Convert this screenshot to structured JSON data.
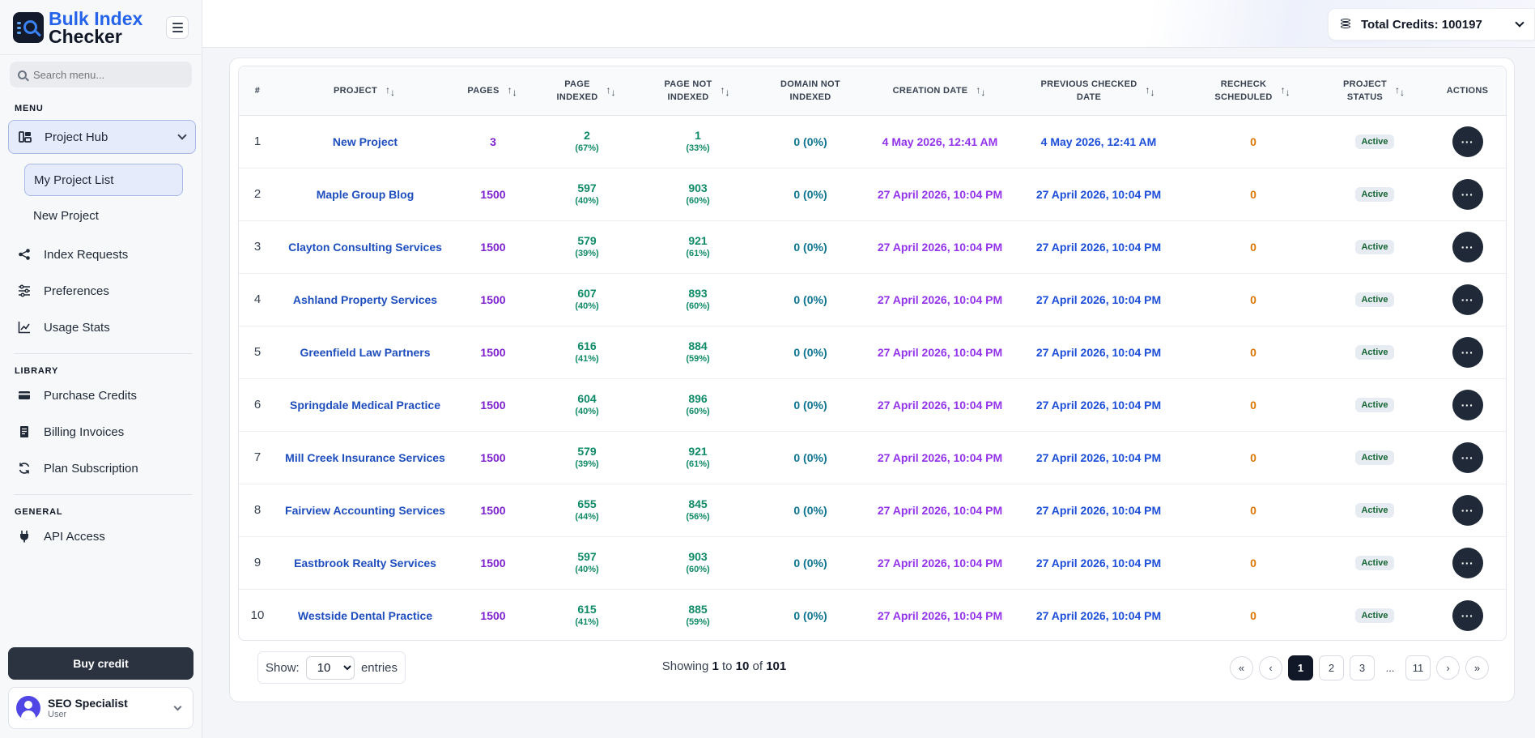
{
  "brand": {
    "line1": "Bulk Index",
    "line2": "Checker"
  },
  "search": {
    "placeholder": "Search menu..."
  },
  "sidebar": {
    "menu_label": "MENU",
    "project_hub": "Project Hub",
    "my_project_list": "My Project List",
    "new_project": "New Project",
    "index_requests": "Index Requests",
    "preferences": "Preferences",
    "usage_stats": "Usage Stats",
    "library_label": "LIBRARY",
    "purchase_credits": "Purchase Credits",
    "billing_invoices": "Billing Invoices",
    "plan_subscription": "Plan Subscription",
    "general_label": "GENERAL",
    "api_access": "API Access",
    "buy_credit": "Buy credit"
  },
  "user": {
    "name": "SEO Specialist",
    "role": "User"
  },
  "header": {
    "credits": "Total Credits: 100197"
  },
  "table": {
    "columns": {
      "num": "#",
      "project": "Project",
      "pages": "Pages",
      "page_indexed_1": "Page",
      "page_indexed_2": "Indexed",
      "not_indexed_1": "Page not",
      "not_indexed_2": "indexed",
      "domain_1": "Domain not",
      "domain_2": "indexed",
      "creation": "Creation Date",
      "prev_1": "Previous checked",
      "prev_2": "date",
      "recheck_1": "Recheck",
      "recheck_2": "scheduled",
      "status_1": "Project",
      "status_2": "Status",
      "actions": "Actions"
    },
    "rows": [
      {
        "num": "1",
        "project": "New Project",
        "pages": "3",
        "indexed": "2",
        "indexed_pct": "(67%)",
        "not_indexed": "1",
        "not_indexed_pct": "(33%)",
        "domain": "0 (0%)",
        "created": "4 May 2026, 12:41 AM",
        "checked": "4 May 2026, 12:41 AM",
        "recheck": "0",
        "status": "Active"
      },
      {
        "num": "2",
        "project": "Maple Group Blog",
        "pages": "1500",
        "indexed": "597",
        "indexed_pct": "(40%)",
        "not_indexed": "903",
        "not_indexed_pct": "(60%)",
        "domain": "0 (0%)",
        "created": "27 April 2026, 10:04 PM",
        "checked": "27 April 2026, 10:04 PM",
        "recheck": "0",
        "status": "Active"
      },
      {
        "num": "3",
        "project": "Clayton Consulting Services",
        "pages": "1500",
        "indexed": "579",
        "indexed_pct": "(39%)",
        "not_indexed": "921",
        "not_indexed_pct": "(61%)",
        "domain": "0 (0%)",
        "created": "27 April 2026, 10:04 PM",
        "checked": "27 April 2026, 10:04 PM",
        "recheck": "0",
        "status": "Active"
      },
      {
        "num": "4",
        "project": "Ashland Property Services",
        "pages": "1500",
        "indexed": "607",
        "indexed_pct": "(40%)",
        "not_indexed": "893",
        "not_indexed_pct": "(60%)",
        "domain": "0 (0%)",
        "created": "27 April 2026, 10:04 PM",
        "checked": "27 April 2026, 10:04 PM",
        "recheck": "0",
        "status": "Active"
      },
      {
        "num": "5",
        "project": "Greenfield Law Partners",
        "pages": "1500",
        "indexed": "616",
        "indexed_pct": "(41%)",
        "not_indexed": "884",
        "not_indexed_pct": "(59%)",
        "domain": "0 (0%)",
        "created": "27 April 2026, 10:04 PM",
        "checked": "27 April 2026, 10:04 PM",
        "recheck": "0",
        "status": "Active"
      },
      {
        "num": "6",
        "project": "Springdale Medical Practice",
        "pages": "1500",
        "indexed": "604",
        "indexed_pct": "(40%)",
        "not_indexed": "896",
        "not_indexed_pct": "(60%)",
        "domain": "0 (0%)",
        "created": "27 April 2026, 10:04 PM",
        "checked": "27 April 2026, 10:04 PM",
        "recheck": "0",
        "status": "Active"
      },
      {
        "num": "7",
        "project": "Mill Creek Insurance Services",
        "pages": "1500",
        "indexed": "579",
        "indexed_pct": "(39%)",
        "not_indexed": "921",
        "not_indexed_pct": "(61%)",
        "domain": "0 (0%)",
        "created": "27 April 2026, 10:04 PM",
        "checked": "27 April 2026, 10:04 PM",
        "recheck": "0",
        "status": "Active"
      },
      {
        "num": "8",
        "project": "Fairview Accounting Services",
        "pages": "1500",
        "indexed": "655",
        "indexed_pct": "(44%)",
        "not_indexed": "845",
        "not_indexed_pct": "(56%)",
        "domain": "0 (0%)",
        "created": "27 April 2026, 10:04 PM",
        "checked": "27 April 2026, 10:04 PM",
        "recheck": "0",
        "status": "Active"
      },
      {
        "num": "9",
        "project": "Eastbrook Realty Services",
        "pages": "1500",
        "indexed": "597",
        "indexed_pct": "(40%)",
        "not_indexed": "903",
        "not_indexed_pct": "(60%)",
        "domain": "0 (0%)",
        "created": "27 April 2026, 10:04 PM",
        "checked": "27 April 2026, 10:04 PM",
        "recheck": "0",
        "status": "Active"
      },
      {
        "num": "10",
        "project": "Westside Dental Practice",
        "pages": "1500",
        "indexed": "615",
        "indexed_pct": "(41%)",
        "not_indexed": "885",
        "not_indexed_pct": "(59%)",
        "domain": "0 (0%)",
        "created": "27 April 2026, 10:04 PM",
        "checked": "27 April 2026, 10:04 PM",
        "recheck": "0",
        "status": "Active"
      }
    ]
  },
  "footer": {
    "show_label": "Show:",
    "page_size": "10",
    "entries_label": "entries",
    "showing_prefix": "Showing",
    "from": "1",
    "to_label": "to",
    "to": "10",
    "of_label": "of",
    "total": "101"
  },
  "pagination": {
    "first": "«",
    "prev": "‹",
    "pages": [
      "1",
      "2",
      "3"
    ],
    "ellipsis": "...",
    "last_page": "11",
    "next": "›",
    "last": "»"
  },
  "icons": {
    "project_hub": "layout-icon",
    "index_requests": "share-icon",
    "preferences": "sliders-icon",
    "usage_stats": "chart-icon",
    "purchase_credits": "card-icon",
    "billing_invoices": "receipt-icon",
    "plan_subscription": "refresh-icon",
    "api_access": "plug-icon"
  }
}
